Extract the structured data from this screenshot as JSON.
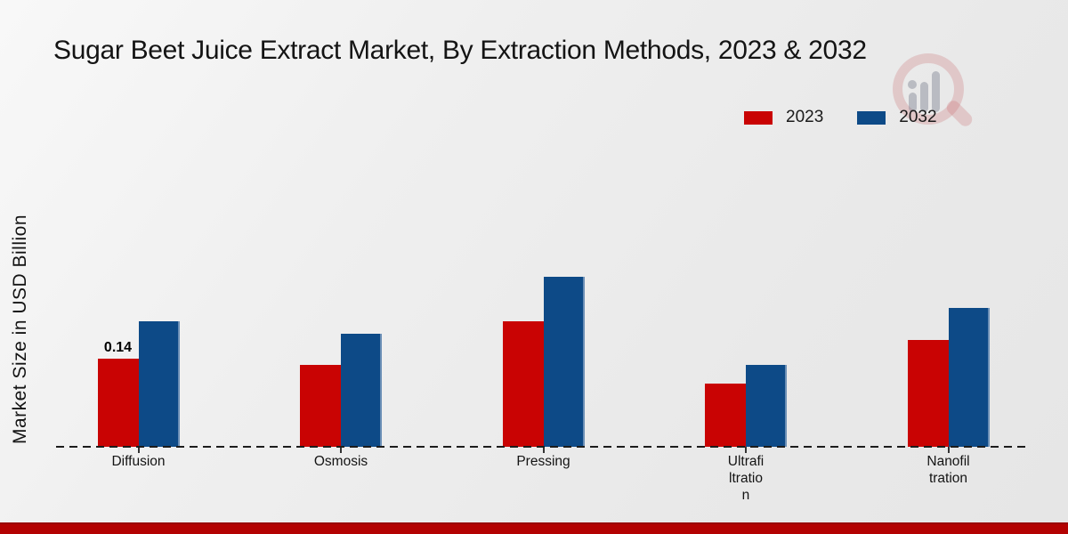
{
  "title": "Sugar Beet Juice Extract Market, By Extraction Methods, 2023 & 2032",
  "y_axis_label": "Market Size in USD Billion",
  "legend": {
    "items": [
      {
        "label": "2023",
        "color": "#c90303"
      },
      {
        "label": "2032",
        "color": "#0d4a87"
      }
    ]
  },
  "watermark_icon": "magnifier-bar-chart-logo",
  "colors": {
    "series_2023": "#c90303",
    "series_2032": "#0d4a87",
    "bottom_stripe": "#b30202",
    "baseline": "#1c1c1c"
  },
  "chart_data": {
    "type": "bar",
    "title": "Sugar Beet Juice Extract Market, By Extraction Methods, 2023 & 2032",
    "xlabel": "",
    "ylabel": "Market Size in USD Billion",
    "ylim": [
      0,
      0.3
    ],
    "grid": false,
    "legend_position": "top-right",
    "baseline_style": "dashed",
    "categories": [
      "Diffusion",
      "Osmosis",
      "Pressing",
      "Ultrafiltration",
      "Nanofiltration"
    ],
    "category_label_lines": [
      [
        "Diffusion"
      ],
      [
        "Osmosis"
      ],
      [
        "Pressing"
      ],
      [
        "Ultrafi",
        "ltratio",
        "n"
      ],
      [
        "Nanofil",
        "tration"
      ]
    ],
    "series": [
      {
        "name": "2023",
        "color": "#c90303",
        "values": [
          0.14,
          0.13,
          0.2,
          0.1,
          0.17
        ]
      },
      {
        "name": "2032",
        "color": "#0d4a87",
        "values": [
          0.2,
          0.18,
          0.27,
          0.13,
          0.22
        ]
      }
    ],
    "bar_labels": [
      {
        "series_index": 0,
        "category_index": 0,
        "text": "0.14"
      }
    ]
  }
}
